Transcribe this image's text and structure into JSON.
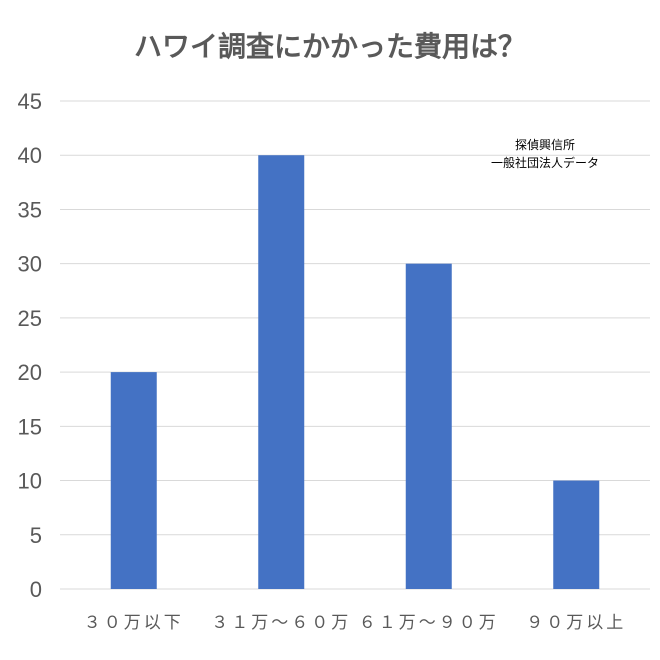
{
  "chart_data": {
    "type": "bar",
    "title": "ハワイ調査にかかった費用は？",
    "categories": [
      "３０万以下",
      "３１万～６０万",
      "６１万～９０万",
      "９０万以上"
    ],
    "values": [
      20,
      40,
      30,
      10
    ],
    "ylim": [
      0,
      45
    ],
    "yticks": [
      0,
      5,
      10,
      15,
      20,
      25,
      30,
      35,
      40,
      45
    ],
    "xlabel": "",
    "ylabel": "",
    "grid": true,
    "bar_color": "#4472c4",
    "annotation": [
      "探偵興信所",
      "一般社団法人データ"
    ]
  }
}
